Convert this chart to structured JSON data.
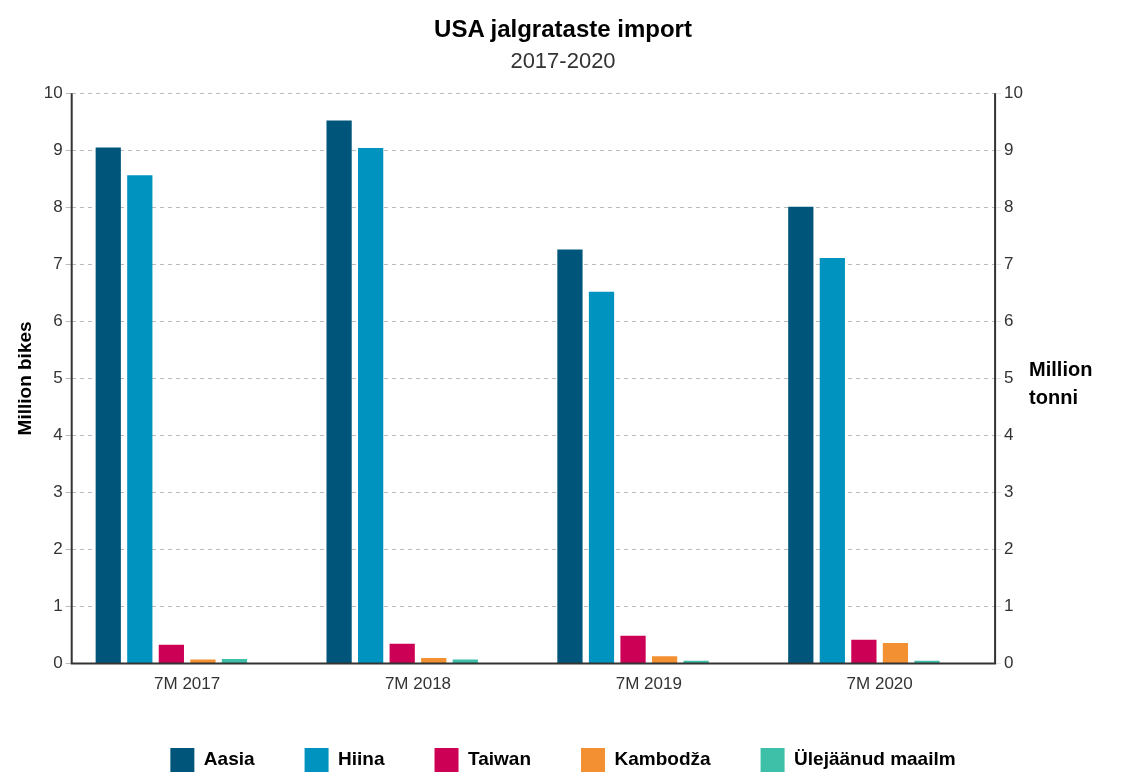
{
  "chart_data": {
    "type": "bar",
    "title": "USA jalgrataste import",
    "subtitle": "2017-2020",
    "ylabel": "Million bikes",
    "y2label": "Million tonni",
    "categories": [
      "7M 2017",
      "7M 2018",
      "7M 2019",
      "7M 2020"
    ],
    "series": [
      {
        "name": "Aasia",
        "color": "#00567a",
        "values": [
          9.05,
          9.52,
          7.26,
          8.01
        ]
      },
      {
        "name": "Hiina",
        "color": "#0093c0",
        "values": [
          8.56,
          9.04,
          6.52,
          7.11
        ]
      },
      {
        "name": "Taiwan",
        "color": "#cc0055",
        "values": [
          0.33,
          0.35,
          0.49,
          0.42
        ]
      },
      {
        "name": "Kambodža",
        "color": "#f39132",
        "values": [
          0.07,
          0.1,
          0.13,
          0.36
        ]
      },
      {
        "name": "Ülejäänud maailm",
        "color": "#3dbfa8",
        "values": [
          0.08,
          0.07,
          0.05,
          0.05
        ]
      }
    ],
    "ylim": [
      0,
      10
    ],
    "yticks": [
      0,
      1,
      2,
      3,
      4,
      5,
      6,
      7,
      8,
      9,
      10
    ],
    "y2lim": [
      0,
      10
    ],
    "y2ticks": [
      0,
      1,
      2,
      3,
      4,
      5,
      6,
      7,
      8,
      9,
      10
    ],
    "grid": "y",
    "legend": "bottom"
  }
}
